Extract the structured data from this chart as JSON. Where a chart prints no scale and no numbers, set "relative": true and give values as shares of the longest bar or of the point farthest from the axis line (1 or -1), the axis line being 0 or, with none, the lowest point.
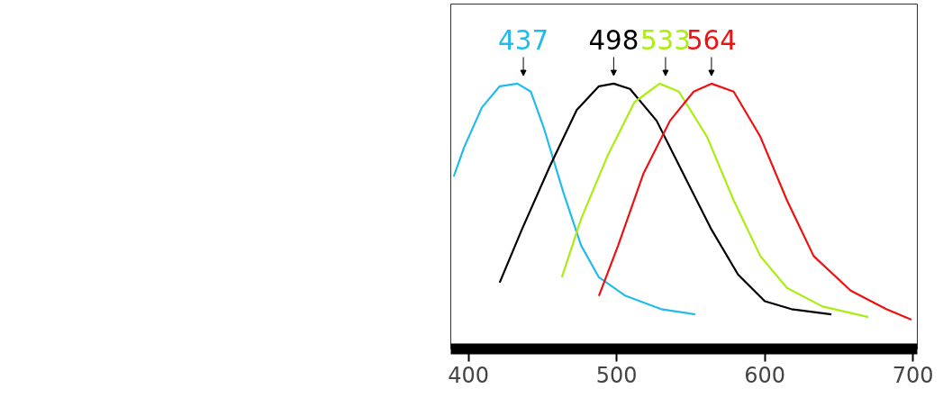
{
  "chart_data": {
    "type": "line",
    "relative": true,
    "xlim": [
      388,
      703
    ],
    "xticks": [
      400,
      500,
      600,
      700
    ],
    "grid": false,
    "marker": "none",
    "line_style": "solid",
    "series": [
      {
        "color": "#22bbee",
        "x": [
          390,
          397,
          409,
          421,
          433,
          442,
          451,
          464,
          476,
          488,
          506,
          530,
          553
        ],
        "values": [
          0.65,
          0.76,
          0.91,
          0.99,
          1.0,
          0.97,
          0.83,
          0.59,
          0.39,
          0.27,
          0.2,
          0.15,
          0.13
        ]
      },
      {
        "color": "#000000",
        "x": [
          421,
          436,
          455,
          473,
          488,
          498,
          509,
          527,
          545,
          564,
          582,
          600,
          618,
          645
        ],
        "values": [
          0.25,
          0.45,
          0.69,
          0.9,
          0.99,
          1.0,
          0.98,
          0.86,
          0.66,
          0.45,
          0.28,
          0.18,
          0.15,
          0.13
        ]
      },
      {
        "color": "#aaee11",
        "x": [
          463,
          476,
          494,
          512,
          529,
          542,
          561,
          579,
          597,
          615,
          639,
          670
        ],
        "values": [
          0.27,
          0.49,
          0.73,
          0.93,
          1.0,
          0.97,
          0.8,
          0.56,
          0.35,
          0.23,
          0.16,
          0.12
        ]
      },
      {
        "color": "#ee1111",
        "x": [
          488,
          501,
          518,
          536,
          552,
          564,
          579,
          597,
          615,
          633,
          658,
          682,
          699
        ],
        "values": [
          0.2,
          0.39,
          0.66,
          0.86,
          0.97,
          1.0,
          0.97,
          0.8,
          0.56,
          0.35,
          0.22,
          0.15,
          0.11
        ]
      }
    ],
    "annotations": [
      {
        "text": "437",
        "x": 437,
        "y": 1.0
      },
      {
        "text": "498",
        "x": 498,
        "y": 1.0
      },
      {
        "text": "533",
        "x": 533,
        "y": 1.0
      },
      {
        "text": "564",
        "x": 564,
        "y": 1.0
      }
    ]
  }
}
